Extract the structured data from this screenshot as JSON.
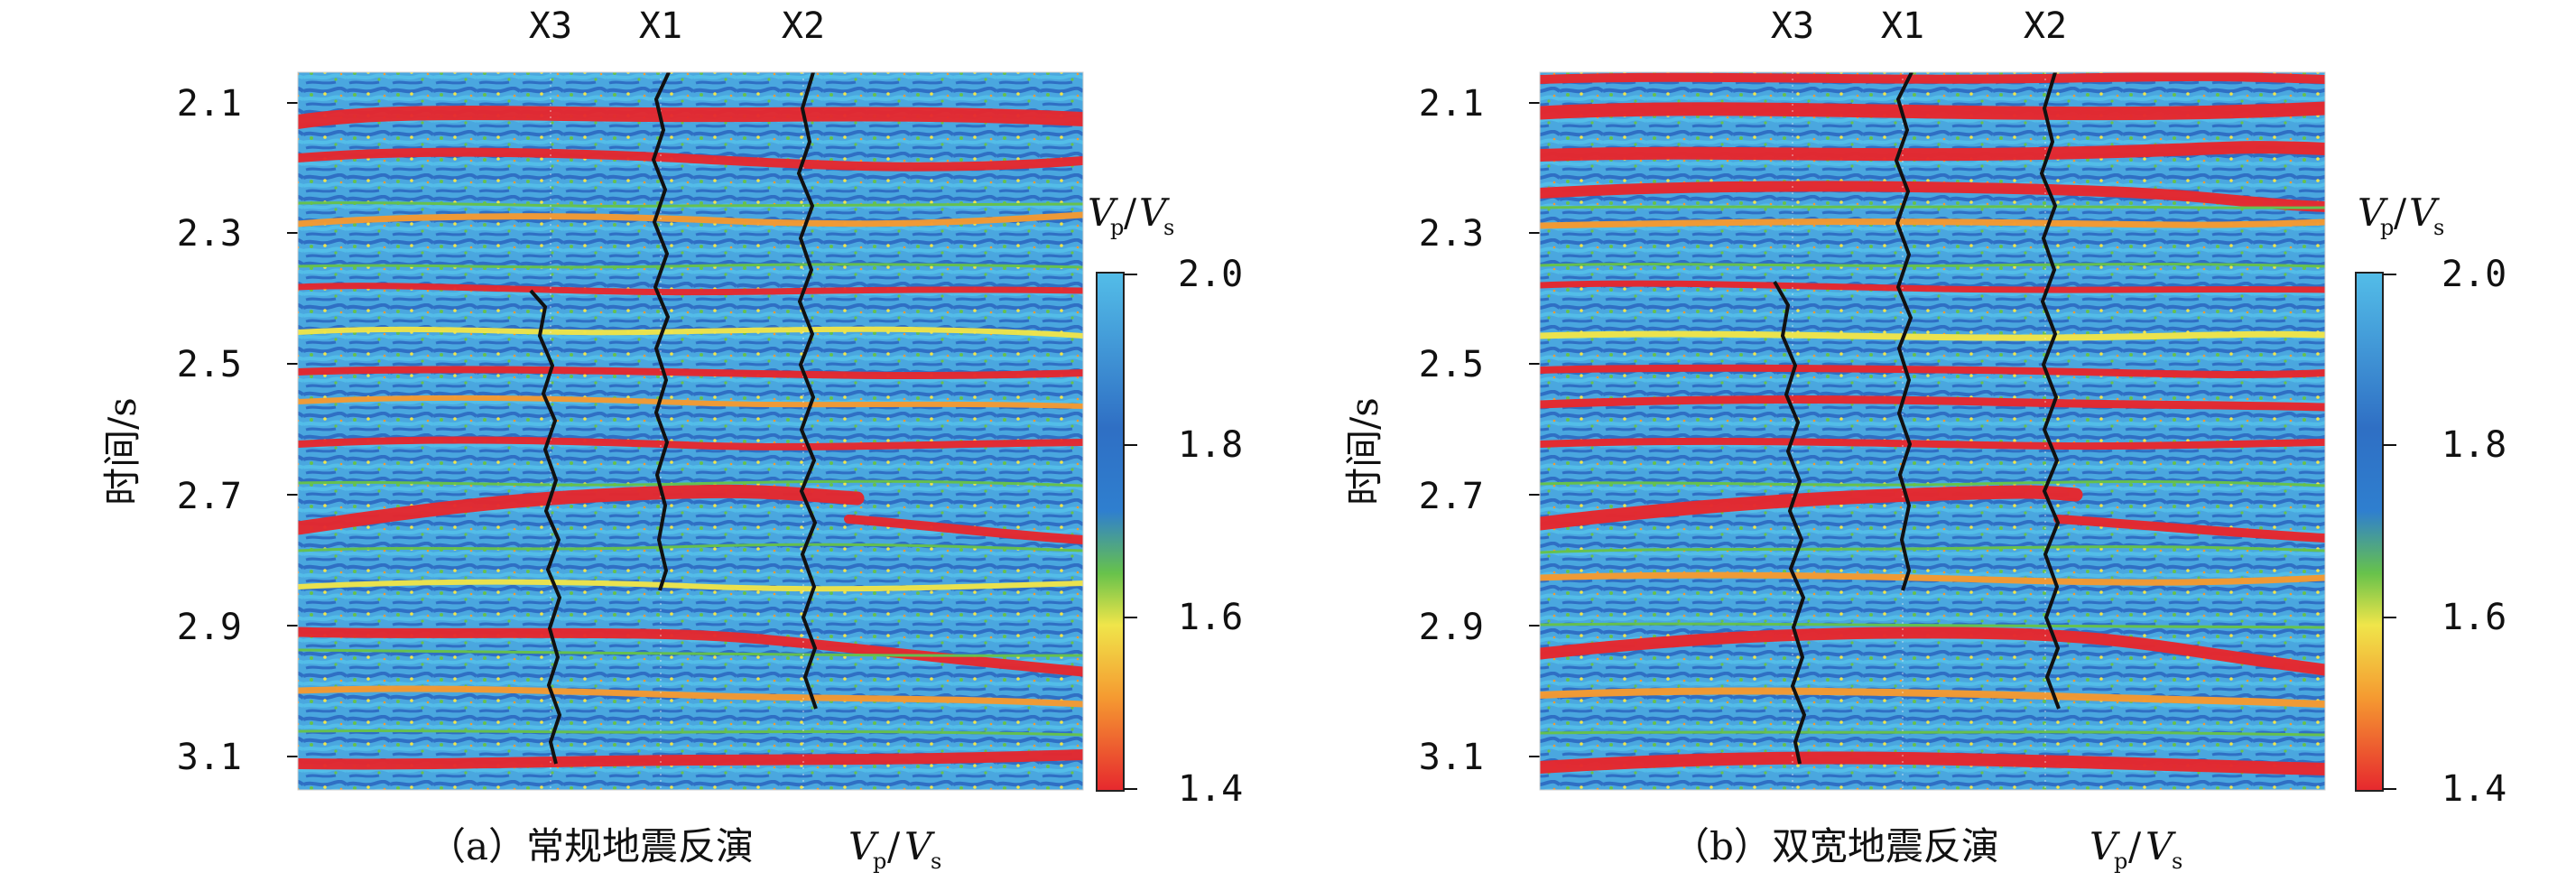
{
  "panels": [
    {
      "id": "a",
      "caption_prefix": "（a）常规地震反演",
      "caption_var_1": "V",
      "caption_sub_1": "p",
      "caption_slash": "/",
      "caption_var_2": "V",
      "caption_sub_2": "s",
      "y_axis_label": "时间/s",
      "y_ticks": [
        "2.1",
        "2.3",
        "2.5",
        "2.7",
        "2.9",
        "3.1"
      ],
      "wells": [
        "X3",
        "X1",
        "X2"
      ],
      "colorbar_title_var_1": "V",
      "colorbar_title_sub_1": "p",
      "colorbar_title_slash": "/",
      "colorbar_title_var_2": "V",
      "colorbar_title_sub_2": "s",
      "colorbar_ticks": [
        "2.0",
        "1.8",
        "1.6",
        "1.4"
      ]
    },
    {
      "id": "b",
      "caption_prefix": "（b）双宽地震反演",
      "caption_var_1": "V",
      "caption_sub_1": "p",
      "caption_slash": "/",
      "caption_var_2": "V",
      "caption_sub_2": "s",
      "y_axis_label": "时间/s",
      "y_ticks": [
        "2.1",
        "2.3",
        "2.5",
        "2.7",
        "2.9",
        "3.1"
      ],
      "wells": [
        "X3",
        "X1",
        "X2"
      ],
      "colorbar_title_var_1": "V",
      "colorbar_title_sub_1": "p",
      "colorbar_title_slash": "/",
      "colorbar_title_var_2": "V",
      "colorbar_title_sub_2": "s",
      "colorbar_ticks": [
        "2.0",
        "1.8",
        "1.6",
        "1.4"
      ]
    }
  ],
  "colors": {
    "background": "#4aa7df",
    "dark_blue": "#2f6fc4",
    "mid_blue": "#3d8ed5",
    "light_blue": "#53bde8",
    "green": "#67c24b",
    "yellow": "#f0e54a",
    "orange": "#f59a31",
    "red": "#e6282e",
    "black": "#111111"
  }
}
